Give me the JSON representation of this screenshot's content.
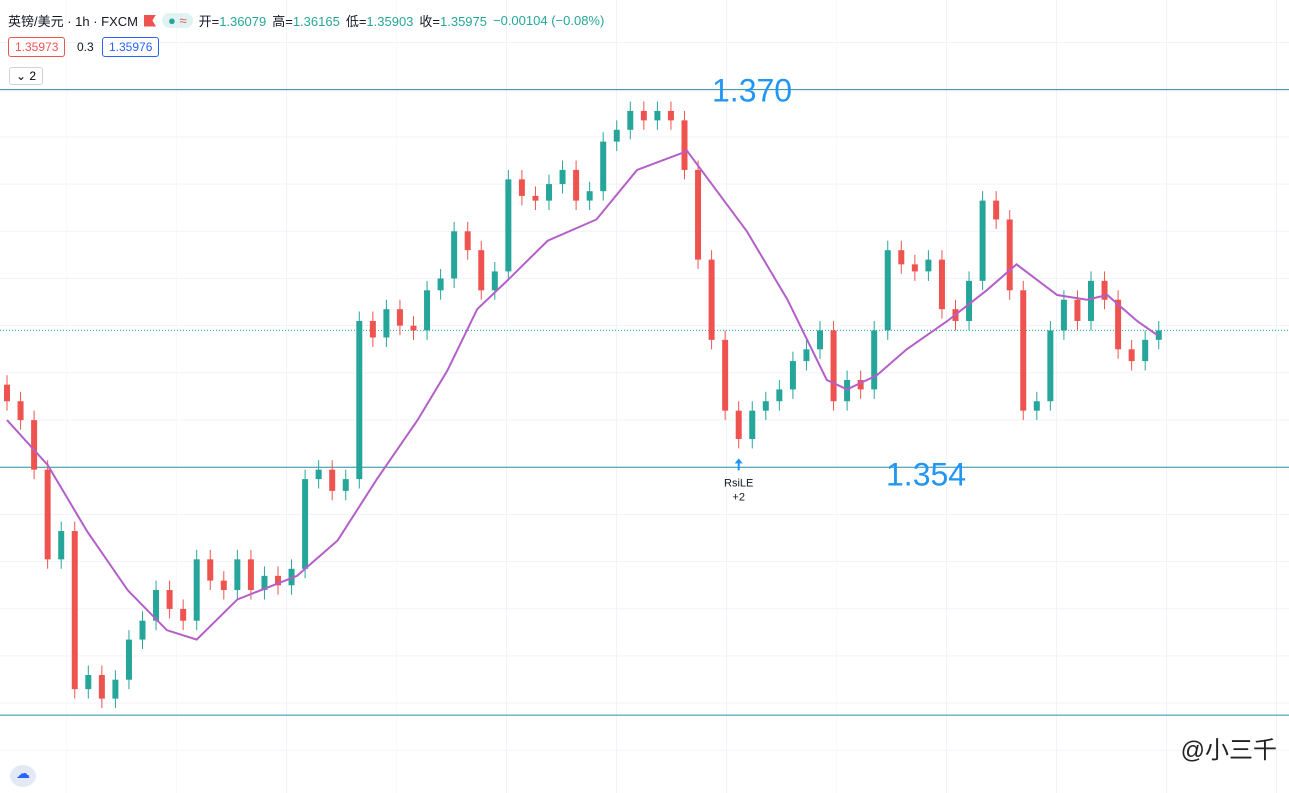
{
  "header": {
    "title": "英镑/美元 · 1h · FXCM",
    "ohlc": [
      {
        "label": "开=",
        "value": "1.36079"
      },
      {
        "label": "高=",
        "value": "1.36165"
      },
      {
        "label": "低=",
        "value": "1.35903"
      },
      {
        "label": "收=",
        "value": "1.35975"
      }
    ],
    "change": "−0.00104 (−0.08%)",
    "bid": "1.35973",
    "spread": "0.3",
    "ask": "1.35976",
    "indicators": "2"
  },
  "watermark": "@小三千",
  "chart_data": {
    "type": "candlestick",
    "up_color": "#26a69a",
    "down_color": "#ef5350",
    "ylim": [
      1.3402,
      1.3738
    ],
    "open": [
      1.3575,
      1.3568,
      1.356,
      1.3539,
      1.3501,
      1.3513,
      1.3446,
      1.3452,
      1.3442,
      1.345,
      1.3467,
      1.3475,
      1.3488,
      1.348,
      1.3475,
      1.3501,
      1.3492,
      1.3488,
      1.3501,
      1.3488,
      1.3494,
      1.349,
      1.3497,
      1.3535,
      1.3539,
      1.353,
      1.3535,
      1.3602,
      1.3595,
      1.3607,
      1.36,
      1.3598,
      1.3615,
      1.362,
      1.364,
      1.3632,
      1.3615,
      1.3623,
      1.3662,
      1.3655,
      1.3653,
      1.366,
      1.3666,
      1.3653,
      1.3657,
      1.3678,
      1.3683,
      1.3691,
      1.3687,
      1.3691,
      1.3687,
      1.3666,
      1.3628,
      1.3594,
      1.3564,
      1.3552,
      1.3564,
      1.3568,
      1.3573,
      1.3585,
      1.359,
      1.3598,
      1.3568,
      1.3577,
      1.3573,
      1.3598,
      1.3632,
      1.3626,
      1.3623,
      1.3628,
      1.3607,
      1.3602,
      1.3619,
      1.3653,
      1.3645,
      1.3615,
      1.3564,
      1.3568,
      1.3598,
      1.3611,
      1.3602,
      1.3619,
      1.3611,
      1.359,
      1.3585,
      1.3594
    ],
    "high": [
      1.3579,
      1.3572,
      1.3564,
      1.3543,
      1.3517,
      1.3517,
      1.3456,
      1.3456,
      1.3454,
      1.3471,
      1.3479,
      1.3492,
      1.3492,
      1.3484,
      1.3505,
      1.3505,
      1.3496,
      1.3505,
      1.3505,
      1.3498,
      1.3498,
      1.3501,
      1.3539,
      1.3543,
      1.3543,
      1.3539,
      1.3606,
      1.3606,
      1.3611,
      1.3611,
      1.3604,
      1.3619,
      1.3624,
      1.3644,
      1.3644,
      1.3636,
      1.3627,
      1.3666,
      1.3666,
      1.3659,
      1.3664,
      1.367,
      1.367,
      1.3661,
      1.3682,
      1.3687,
      1.3695,
      1.3695,
      1.3695,
      1.3695,
      1.3691,
      1.367,
      1.3632,
      1.3598,
      1.3568,
      1.3568,
      1.3572,
      1.3577,
      1.3589,
      1.3594,
      1.3602,
      1.3602,
      1.3581,
      1.3581,
      1.3602,
      1.3636,
      1.3636,
      1.363,
      1.3632,
      1.3632,
      1.3611,
      1.3623,
      1.3657,
      1.3657,
      1.3649,
      1.3619,
      1.3572,
      1.3602,
      1.3615,
      1.3615,
      1.3623,
      1.3623,
      1.3615,
      1.3594,
      1.3598,
      1.3602
    ],
    "low": [
      1.3564,
      1.3556,
      1.3535,
      1.3497,
      1.3497,
      1.3442,
      1.3442,
      1.3438,
      1.3438,
      1.3446,
      1.3463,
      1.3471,
      1.3476,
      1.3471,
      1.3471,
      1.3488,
      1.3484,
      1.3484,
      1.3484,
      1.3484,
      1.3486,
      1.3486,
      1.3493,
      1.3531,
      1.3526,
      1.3526,
      1.3531,
      1.3591,
      1.3591,
      1.3596,
      1.3594,
      1.3594,
      1.3611,
      1.3616,
      1.3628,
      1.3611,
      1.3611,
      1.3619,
      1.3651,
      1.3649,
      1.3649,
      1.3656,
      1.3649,
      1.3649,
      1.3653,
      1.3674,
      1.3679,
      1.3683,
      1.3683,
      1.3683,
      1.3662,
      1.3624,
      1.359,
      1.356,
      1.3548,
      1.3548,
      1.356,
      1.3564,
      1.3569,
      1.3581,
      1.3586,
      1.3564,
      1.3564,
      1.3569,
      1.3569,
      1.3594,
      1.3622,
      1.3619,
      1.3619,
      1.3603,
      1.3598,
      1.3598,
      1.3615,
      1.3641,
      1.3611,
      1.356,
      1.356,
      1.3564,
      1.3594,
      1.3598,
      1.3598,
      1.3607,
      1.3586,
      1.3581,
      1.3581,
      1.359
    ],
    "close": [
      1.3568,
      1.356,
      1.3539,
      1.3501,
      1.3513,
      1.3446,
      1.3452,
      1.3442,
      1.345,
      1.3467,
      1.3475,
      1.3488,
      1.348,
      1.3475,
      1.3501,
      1.3492,
      1.3488,
      1.3501,
      1.3488,
      1.3494,
      1.349,
      1.3497,
      1.3535,
      1.3539,
      1.353,
      1.3535,
      1.3602,
      1.3595,
      1.3607,
      1.36,
      1.3598,
      1.3615,
      1.362,
      1.364,
      1.3632,
      1.3615,
      1.3623,
      1.3662,
      1.3655,
      1.3653,
      1.366,
      1.3666,
      1.3653,
      1.3657,
      1.3678,
      1.3683,
      1.3691,
      1.3687,
      1.3691,
      1.3687,
      1.3666,
      1.3628,
      1.3594,
      1.3564,
      1.3552,
      1.3564,
      1.3568,
      1.3573,
      1.3585,
      1.359,
      1.3598,
      1.3568,
      1.3577,
      1.3573,
      1.3598,
      1.3632,
      1.3626,
      1.3623,
      1.3628,
      1.3607,
      1.3602,
      1.3619,
      1.3653,
      1.3645,
      1.3615,
      1.3564,
      1.3568,
      1.3598,
      1.3611,
      1.3602,
      1.3619,
      1.3611,
      1.359,
      1.3585,
      1.3594,
      1.3598
    ],
    "ma": {
      "color": "#b45fc8",
      "x": [
        0,
        3,
        5.9,
        8.9,
        11.8,
        14,
        17,
        21.4,
        24.4,
        27.3,
        30.3,
        32.5,
        34.7,
        36.9,
        39.9,
        43.5,
        46.5,
        50.2,
        52.4,
        54.6,
        57.6,
        60.5,
        62,
        64.2,
        66.4,
        69.4,
        72.3,
        74.5,
        77.5,
        79.7,
        81.2,
        83.4,
        84.9
      ],
      "values": [
        1.356,
        1.3541,
        1.3513,
        1.3488,
        1.3471,
        1.3467,
        1.3484,
        1.3494,
        1.3509,
        1.3535,
        1.356,
        1.3581,
        1.3607,
        1.3619,
        1.3636,
        1.3645,
        1.3666,
        1.3674,
        1.3657,
        1.364,
        1.3611,
        1.3577,
        1.3573,
        1.3579,
        1.359,
        1.3602,
        1.3615,
        1.3626,
        1.3613,
        1.3611,
        1.3613,
        1.3602,
        1.3596
      ]
    },
    "levels": [
      {
        "value": 1.37,
        "label": "1.370"
      },
      {
        "value": 1.354,
        "label": "1.354"
      },
      1.3435
    ],
    "level_color": "#2a8fa8",
    "signal": {
      "index": 54,
      "label": "RsiLE",
      "count": "+2"
    }
  }
}
